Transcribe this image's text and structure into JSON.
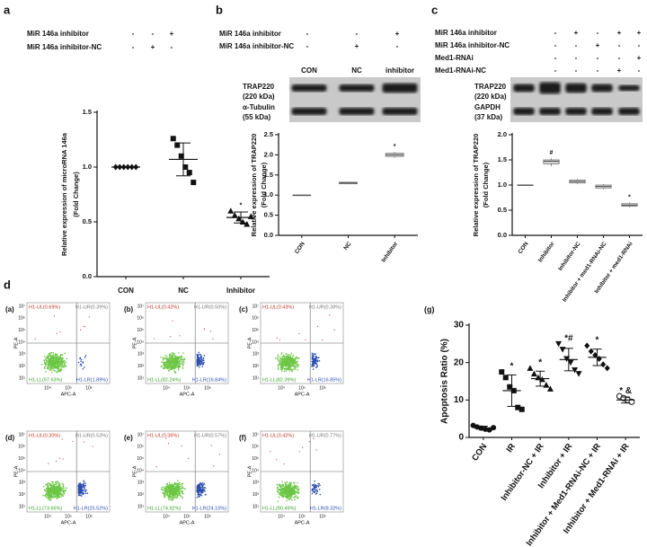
{
  "figure": {
    "labels": [
      "a",
      "b",
      "c",
      "d"
    ]
  },
  "tables": [
    {
      "rows": [
        {
          "label": "MiR 146a inhibitor",
          "cells": [
            "-",
            "-",
            "+"
          ]
        },
        {
          "label": "MiR 146a inhibitor-NC",
          "cells": [
            "-",
            "+",
            "-"
          ]
        }
      ]
    },
    {
      "rows": [
        {
          "label": "MiR 146a inhibitor",
          "cells": [
            "-",
            "-",
            "+"
          ]
        },
        {
          "label": "MiR 146a inhibitor-NC",
          "cells": [
            "-",
            "+",
            "-"
          ]
        }
      ]
    },
    {
      "rows": [
        {
          "label": "MiR 146a inhibitor",
          "cells": [
            "-",
            "+",
            "-",
            "+",
            "+"
          ]
        },
        {
          "label": "MiR 146a inhibitor-NC",
          "cells": [
            "-",
            "-",
            "+",
            "-",
            "-"
          ]
        },
        {
          "label": "Med1-RNAi",
          "cells": [
            "-",
            "-",
            "-",
            "-",
            "+"
          ]
        },
        {
          "label": "Med1-RNAi-NC",
          "cells": [
            "-",
            "-",
            "-",
            "+",
            "-"
          ]
        }
      ]
    }
  ],
  "blots": [
    {
      "lanes": [
        "CON",
        "NC",
        "inhibitor"
      ],
      "rows": [
        "TRAP220",
        "(220 kDa)",
        "α-Tubulin",
        "(55 kDa)"
      ]
    },
    {
      "rows": [
        "TRAP220",
        "(220 kDa)",
        "GAPDH",
        "(37 kDa)"
      ]
    }
  ],
  "chart_data": [
    {
      "type": "dotplot",
      "categories": [
        "CON",
        "NC",
        "Inhibitor"
      ],
      "points": [
        [
          1,
          1,
          1,
          1,
          1,
          1
        ],
        [
          1.26,
          1.2,
          1.1,
          1.0,
          0.95,
          0.86
        ],
        [
          0.6,
          0.56,
          0.53,
          0.5,
          0.48,
          0.55
        ]
      ],
      "means": [
        1,
        1.07,
        0.54
      ],
      "sd": [
        0,
        0.15,
        0.05
      ],
      "markers": [
        "diamond",
        "square",
        "triangle"
      ],
      "annotations": [
        null,
        null,
        "*"
      ],
      "ylabel": [
        "Relative expression of microRNA 146a",
        "(Fold Change)"
      ],
      "ylim": [
        0,
        1.5
      ],
      "yticks": [
        {
          "value": 0,
          "label": "0.0"
        },
        0.5,
        {
          "value": 1,
          "label": "1.0"
        },
        1.5
      ],
      "color": "#111111"
    },
    {
      "type": "box",
      "categories": [
        "CON",
        "NC",
        "Inhibitor"
      ],
      "min": [
        1,
        1.27,
        1.93
      ],
      "q1": [
        1,
        1.28,
        1.96
      ],
      "median": [
        1,
        1.3,
        2.0
      ],
      "q3": [
        1,
        1.32,
        2.04
      ],
      "max": [
        1,
        1.33,
        2.07
      ],
      "annotations": [
        null,
        null,
        "*"
      ],
      "ylabel": [
        "Relative expression of TRAP220",
        "(Fold Change)"
      ],
      "ylim": [
        0,
        2.5
      ],
      "yticks": [
        {
          "value": 0,
          "label": "0.0"
        },
        0.5,
        {
          "value": 1,
          "label": "1.0"
        },
        1.5,
        {
          "value": 2,
          "label": "2.0"
        },
        2.5
      ],
      "color": "#dddddd"
    },
    {
      "type": "box",
      "categories": [
        "CON",
        "Inhibitor",
        "Inhibitor-NC",
        "Inhibitor + med1-RNAi-NC",
        "Inhibitor + med1-RNAi"
      ],
      "min": [
        1,
        1.38,
        1.02,
        0.92,
        0.56
      ],
      "q1": [
        1,
        1.42,
        1.04,
        0.94,
        0.58
      ],
      "median": [
        1,
        1.47,
        1.07,
        0.97,
        0.6
      ],
      "q3": [
        1,
        1.5,
        1.1,
        1.0,
        0.63
      ],
      "max": [
        1,
        1.53,
        1.12,
        1.02,
        0.65
      ],
      "annotations": [
        null,
        "#",
        null,
        null,
        "*"
      ],
      "ylabel": [
        "Relative expression of TRAP220",
        "(Fold Change)"
      ],
      "ylim": [
        0,
        2
      ],
      "yticks": [
        {
          "value": 0,
          "label": "0.0"
        },
        0.5,
        {
          "value": 1,
          "label": "1.0"
        },
        1.5,
        {
          "value": 2,
          "label": "2.0"
        }
      ],
      "color": "#dddddd"
    },
    {
      "type": "dotplot",
      "title": "(g)",
      "categories": [
        "CON",
        "IR",
        "Inhibitor-NC + IR",
        "Inhibitor + IR",
        "Inhibitor + Med1-RNAi-NC + IR",
        "Inhibitor + Med1-RNAi + IR"
      ],
      "points": [
        [
          3.2,
          2.8,
          2.5,
          2.2,
          2.0,
          2.6
        ],
        [
          17.5,
          16,
          13.5,
          12.5,
          8,
          7.5
        ],
        [
          18.5,
          17,
          16,
          15.5,
          14,
          13
        ],
        [
          25,
          23.5,
          21,
          20,
          18,
          17
        ],
        [
          24.5,
          23,
          22,
          21,
          19.5,
          18.5
        ],
        [
          11,
          10.5,
          10,
          9.5
        ]
      ],
      "means": [
        2.5,
        12.5,
        15.7,
        20.8,
        21.4,
        10
      ],
      "sd": [
        0.5,
        4.2,
        2,
        3,
        2.2,
        0.8
      ],
      "markers": [
        "circle",
        "square",
        "triangle",
        "invtriangle",
        "diamond",
        "opencircle"
      ],
      "annotations": [
        null,
        "*",
        "*",
        "*#",
        "*",
        "* &"
      ],
      "ylabel": "Apoptosis Ratio (%)",
      "ylim": [
        0,
        30
      ],
      "yticks": [
        0,
        10,
        20,
        30
      ],
      "color": "#111111"
    }
  ],
  "flow": {
    "xlabel": "APC-A",
    "ylabel": "PE-A",
    "xticks": [
      "10⁴",
      "10⁵",
      "10⁶"
    ],
    "yticks": [
      "10¹",
      "10²",
      "10³",
      "10⁴",
      "10⁵",
      "10⁶",
      "10⁷"
    ],
    "panels": [
      {
        "label": "(a)",
        "ul": "H1-UL(0.69%)",
        "ur": "H1-UR(0.39%)",
        "ll": "H1-LL(97.63%)",
        "lr": "H1-LR(1.89%)"
      },
      {
        "label": "(b)",
        "ul": "H1-UL(0.42%)",
        "ur": "H1-UR(0.50%)",
        "ll": "H1-LL(82.24%)",
        "lr": "H1-LR(16.84%)"
      },
      {
        "label": "(c)",
        "ul": "H1-UL(0.43%)",
        "ur": "H1-UR(0.38%)",
        "ll": "H1-LL(82.39%)",
        "lr": "H1-LR(16.85%)"
      },
      {
        "label": "(d)",
        "ul": "H1-UL(0.30%)",
        "ur": "H1-UR(0.53%)",
        "ll": "H1-LL(73.65%)",
        "lr": "H1-LR(25.52%)"
      },
      {
        "label": "(e)",
        "ul": "H1-UL(0.36%)",
        "ur": "H1-UR(0.57%)",
        "ll": "H1-LL(74.92%)",
        "lr": "H1-LR(24.15%)"
      },
      {
        "label": "(f)",
        "ul": "H1-UL(0.42%)",
        "ur": "H1-UR(0.77%)",
        "ll": "H1-LL(90.49%)",
        "lr": "H1-LR(8.32%)"
      }
    ]
  }
}
